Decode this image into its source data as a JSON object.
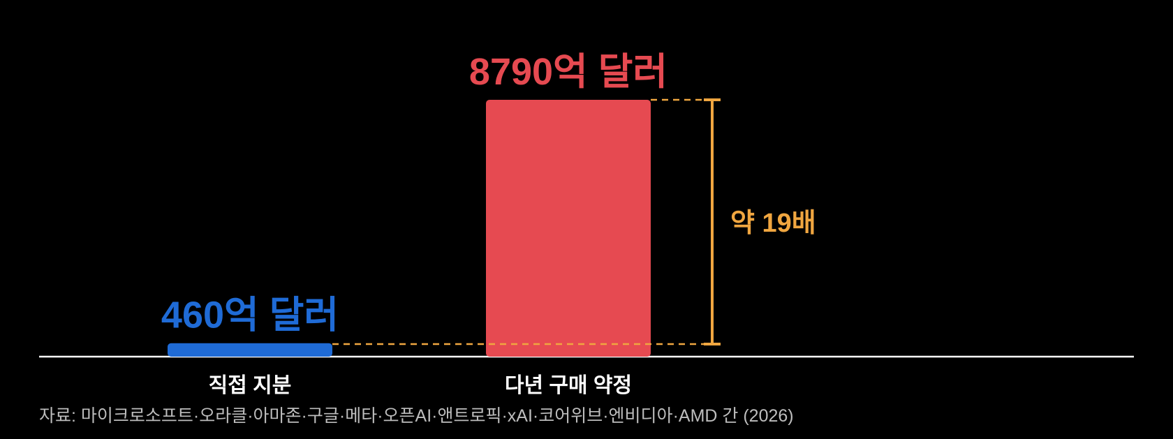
{
  "chart_data": {
    "type": "bar",
    "categories": [
      "직접 지분",
      "다년 구매 약정"
    ],
    "values": [
      460,
      8790
    ],
    "value_labels": [
      "460억 달러",
      "8790억 달러"
    ],
    "colors": [
      "#1f6bd6",
      "#e64a51"
    ],
    "annotation": {
      "label": "약 19배",
      "color": "#f0a640"
    },
    "ylim": [
      0,
      8790
    ],
    "grid": false,
    "legend": "none"
  },
  "source_note": "자료: 마이크로소프트·오라클·아마존·구글·메타·오픈AI·앤트로픽·xAI·코어위브·엔비디아·AMD 간 (2026)"
}
